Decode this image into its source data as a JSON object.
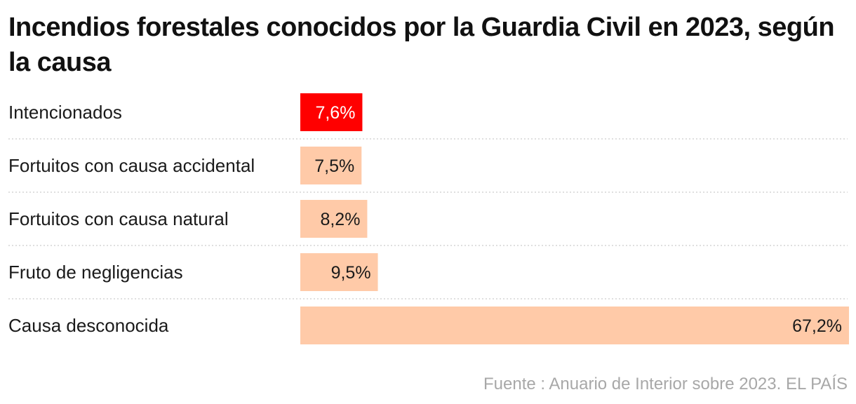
{
  "chart_data": {
    "type": "bar",
    "orientation": "horizontal",
    "title": "Incendios forestales conocidos por la Guardia Civil en 2023, según la causa",
    "categories": [
      "Intencionados",
      "Fortuitos con causa accidental",
      "Fortuitos con causa natural",
      "Fruto de negligencias",
      "Causa desconocida"
    ],
    "values": [
      7.6,
      7.5,
      8.2,
      9.5,
      67.2
    ],
    "value_labels": [
      "7,6%",
      "7,5%",
      "8,2%",
      "9,5%",
      "67,2%"
    ],
    "highlight_index": 0,
    "xlim": [
      0,
      67.2
    ],
    "unit": "%",
    "xlabel": "",
    "ylabel": "",
    "source": "Fuente : Anuario de Interior sobre 2023. EL PAÍS"
  },
  "colors": {
    "highlight": "#ff0000",
    "bar": "#ffcaa8",
    "highlight_text": "#ffffff",
    "text": "#1a1a1a",
    "separator": "#cccccc"
  }
}
